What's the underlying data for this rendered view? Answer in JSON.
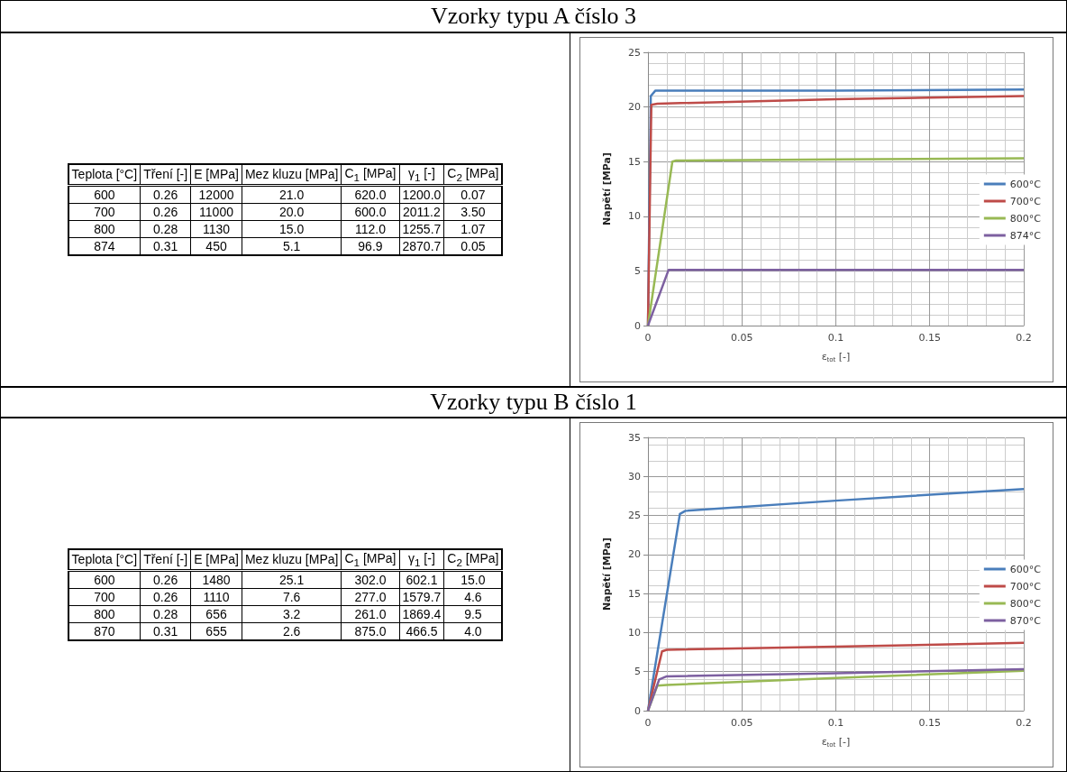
{
  "chart_data": [
    {
      "type": "other",
      "title": "Vzorky typu A číslo 3",
      "categories": [
        "Teplota [°C]",
        "Tření [-]",
        "E [MPa]",
        "Mez kluzu [MPa]",
        "C$_{1}$ [MPa]",
        "γ$_{1}$ [-]",
        "C$_{2}$ [MPa]"
      ],
      "cell_labels": [
        [
          "600",
          "0.26",
          "12000",
          "21.0",
          "620.0",
          "1200.0",
          "0.07"
        ],
        [
          "700",
          "0.26",
          "11000",
          "20.0",
          "600.0",
          "2011.2",
          "3.50"
        ],
        [
          "800",
          "0.28",
          "1130",
          "15.0",
          "112.0",
          "1255.7",
          "1.07"
        ],
        [
          "874",
          "0.31",
          "450",
          "5.1",
          "96.9",
          "2870.7",
          "0.05"
        ]
      ]
    },
    {
      "type": "line",
      "xlabel": "ε$_{tot}$ [-]",
      "ylabel": "Napětí [MPa]",
      "xlim": [
        0,
        0.2
      ],
      "xticks": [
        0,
        0.05,
        0.1,
        0.15,
        0.2
      ],
      "ylim": [
        0,
        25
      ],
      "yticks": [
        0,
        5,
        10,
        15,
        20,
        25
      ],
      "grid": true,
      "legend": "right",
      "marker": "none",
      "line_style": "solid",
      "series": [
        {
          "name": "600°C",
          "color": "#4a7ebb",
          "x": [
            0,
            0.0015,
            0.004,
            0.1,
            0.2
          ],
          "values": [
            0,
            21,
            21.5,
            21.5,
            21.6
          ]
        },
        {
          "name": "700°C",
          "color": "#be4b48",
          "x": [
            0,
            0.0018,
            0.005,
            0.1,
            0.2
          ],
          "values": [
            0,
            20.2,
            20.3,
            20.7,
            21.0
          ]
        },
        {
          "name": "800°C",
          "color": "#98b954",
          "x": [
            0,
            0.013,
            0.015,
            0.1,
            0.2
          ],
          "values": [
            0,
            15,
            15.1,
            15.2,
            15.3
          ]
        },
        {
          "name": "874°C",
          "color": "#7d60a0",
          "x": [
            0,
            0.011,
            0.2
          ],
          "values": [
            0,
            5.1,
            5.1
          ]
        }
      ]
    },
    {
      "type": "other",
      "title": "Vzorky typu B číslo 1",
      "categories": [
        "Teplota [°C]",
        "Tření [-]",
        "E [MPa]",
        "Mez kluzu [MPa]",
        "C$_{1}$ [MPa]",
        "γ$_{1}$ [-]",
        "C$_{2}$ [MPa]"
      ],
      "cell_labels": [
        [
          "600",
          "0.26",
          "1480",
          "25.1",
          "302.0",
          "602.1",
          "15.0"
        ],
        [
          "700",
          "0.26",
          "1110",
          "7.6",
          "277.0",
          "1579.7",
          "4.6"
        ],
        [
          "800",
          "0.28",
          "656",
          "3.2",
          "261.0",
          "1869.4",
          "9.5"
        ],
        [
          "870",
          "0.31",
          "655",
          "2.6",
          "875.0",
          "466.5",
          "4.0"
        ]
      ]
    },
    {
      "type": "line",
      "xlabel": "ε$_{tot}$ [-]",
      "ylabel": "Napětí [MPa]",
      "xlim": [
        0,
        0.2
      ],
      "xticks": [
        0,
        0.05,
        0.1,
        0.15,
        0.2
      ],
      "ylim": [
        0,
        35
      ],
      "yticks": [
        0,
        5,
        10,
        15,
        20,
        25,
        30,
        35
      ],
      "grid": true,
      "legend": "right",
      "marker": "none",
      "line_style": "solid",
      "series": [
        {
          "name": "600°C",
          "color": "#4a7ebb",
          "x": [
            0,
            0.017,
            0.02,
            0.1,
            0.2
          ],
          "values": [
            0,
            25.2,
            25.6,
            26.9,
            28.4
          ]
        },
        {
          "name": "700°C",
          "color": "#be4b48",
          "x": [
            0,
            0.0075,
            0.01,
            0.1,
            0.2
          ],
          "values": [
            0,
            7.6,
            7.8,
            8.2,
            8.7
          ]
        },
        {
          "name": "800°C",
          "color": "#98b954",
          "x": [
            0,
            0.005,
            0.01,
            0.1,
            0.2
          ],
          "values": [
            0,
            3.2,
            3.3,
            4.2,
            5.1
          ]
        },
        {
          "name": "870°C",
          "color": "#7d60a0",
          "x": [
            0,
            0.006,
            0.01,
            0.1,
            0.2
          ],
          "values": [
            0,
            4.0,
            4.4,
            4.8,
            5.3
          ]
        }
      ]
    }
  ]
}
